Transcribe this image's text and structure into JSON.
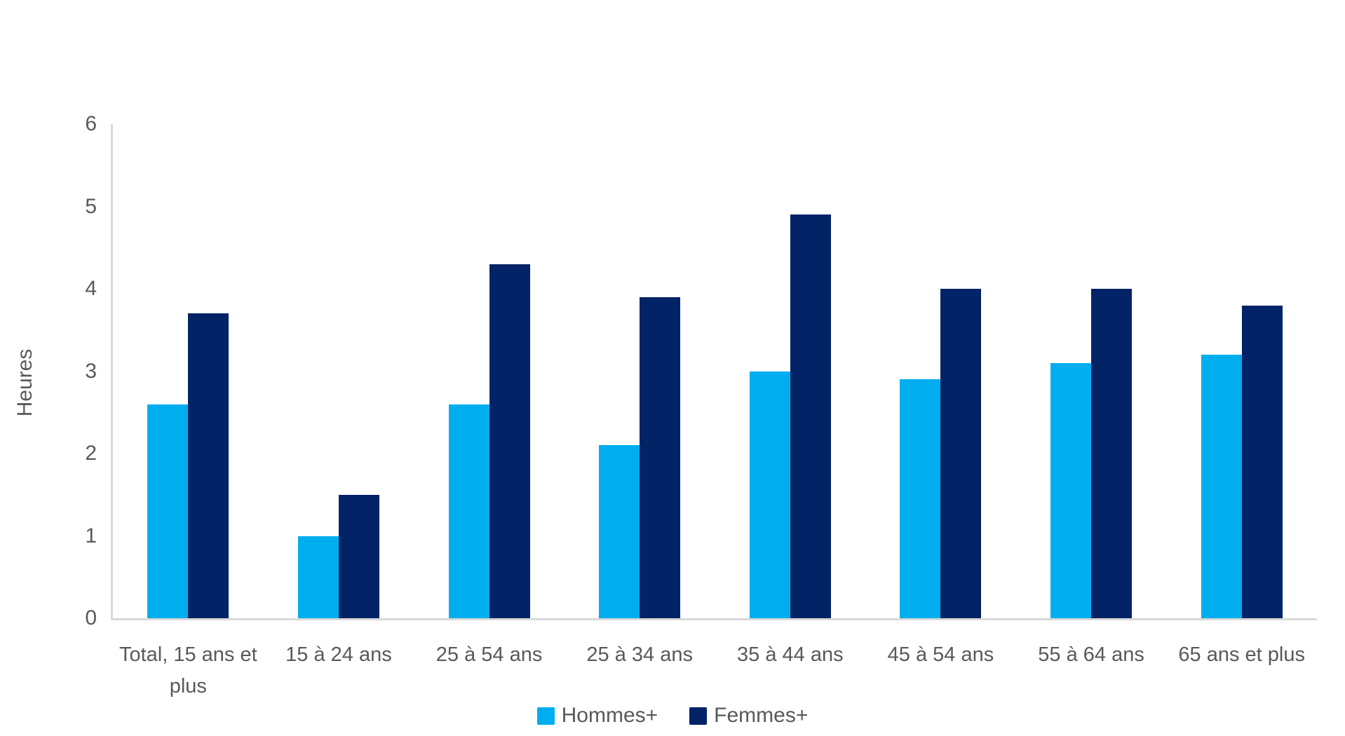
{
  "chart_data": {
    "type": "bar",
    "title": "",
    "ylabel": "Heures",
    "xlabel": "",
    "categories": [
      "Total, 15 ans et plus",
      "15 à 24 ans",
      "25 à 54 ans",
      "25 à 34 ans",
      "35 à 44 ans",
      "45 à 54 ans",
      "55 à 64 ans",
      "65 ans et plus"
    ],
    "series": [
      {
        "name": "Hommes+",
        "color": "#00AEF0",
        "values": [
          2.6,
          1.0,
          2.6,
          2.1,
          3.0,
          2.9,
          3.1,
          3.2
        ]
      },
      {
        "name": "Femmes+",
        "color": "#022366",
        "values": [
          3.7,
          1.5,
          4.3,
          3.9,
          4.9,
          4.0,
          4.0,
          3.8
        ]
      }
    ],
    "ylim": [
      0,
      6
    ],
    "yticks": [
      0,
      1,
      2,
      3,
      4,
      5,
      6
    ],
    "grid": false,
    "legend_position": "bottom"
  },
  "colors": {
    "axis_line": "#D9D9D9",
    "label_text": "#595959",
    "background": "#FFFFFF"
  }
}
